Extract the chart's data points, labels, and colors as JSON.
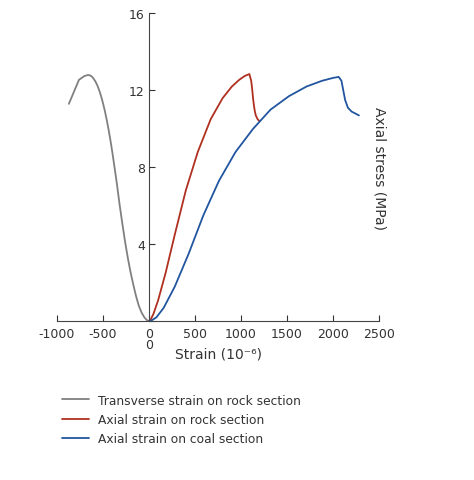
{
  "xlabel": "Strain (10⁻⁶)",
  "ylabel": "Axial stress (MPa)",
  "xlim": [
    -1000,
    2500
  ],
  "ylim": [
    0,
    16
  ],
  "xticks": [
    -1000,
    -500,
    0,
    500,
    1000,
    1500,
    2000,
    2500
  ],
  "yticks": [
    0,
    4,
    8,
    12,
    16
  ],
  "background_color": "#ffffff",
  "legend": [
    {
      "label": "Transverse strain on rock section",
      "color": "#808080"
    },
    {
      "label": "Axial strain on rock section",
      "color": "#b03020"
    },
    {
      "label": "Axial strain on coal section",
      "color": "#2155a0"
    }
  ],
  "curve_gray": {
    "x": [
      -870,
      -760,
      -700,
      -660,
      -640,
      -620,
      -600,
      -580,
      -560,
      -540,
      -520,
      -500,
      -480,
      -460,
      -440,
      -420,
      -400,
      -380,
      -350,
      -320,
      -290,
      -260,
      -230,
      -200,
      -170,
      -140,
      -110,
      -80,
      -50,
      -25,
      -10,
      0
    ],
    "y": [
      11.3,
      12.55,
      12.75,
      12.8,
      12.78,
      12.72,
      12.6,
      12.45,
      12.25,
      12.0,
      11.7,
      11.35,
      10.95,
      10.5,
      10.0,
      9.45,
      8.85,
      8.2,
      7.2,
      6.1,
      5.1,
      4.15,
      3.3,
      2.55,
      1.9,
      1.3,
      0.8,
      0.45,
      0.2,
      0.07,
      0.02,
      0.0
    ]
  },
  "curve_red": {
    "x": [
      0,
      20,
      50,
      100,
      180,
      280,
      400,
      530,
      670,
      800,
      900,
      980,
      1040,
      1090,
      1110,
      1120,
      1130,
      1140,
      1150,
      1160,
      1180,
      1200
    ],
    "y": [
      0.0,
      0.1,
      0.4,
      1.1,
      2.5,
      4.5,
      6.8,
      8.8,
      10.5,
      11.6,
      12.2,
      12.55,
      12.75,
      12.85,
      12.5,
      12.1,
      11.6,
      11.2,
      10.9,
      10.7,
      10.5,
      10.4
    ]
  },
  "curve_blue": {
    "x": [
      0,
      30,
      80,
      160,
      280,
      430,
      590,
      760,
      940,
      1130,
      1320,
      1520,
      1710,
      1880,
      2000,
      2060,
      2090,
      2110,
      2130,
      2160,
      2200,
      2280
    ],
    "y": [
      0.0,
      0.05,
      0.2,
      0.7,
      1.8,
      3.5,
      5.5,
      7.3,
      8.8,
      10.0,
      11.0,
      11.7,
      12.2,
      12.5,
      12.65,
      12.7,
      12.5,
      12.0,
      11.5,
      11.1,
      10.9,
      10.7
    ]
  }
}
